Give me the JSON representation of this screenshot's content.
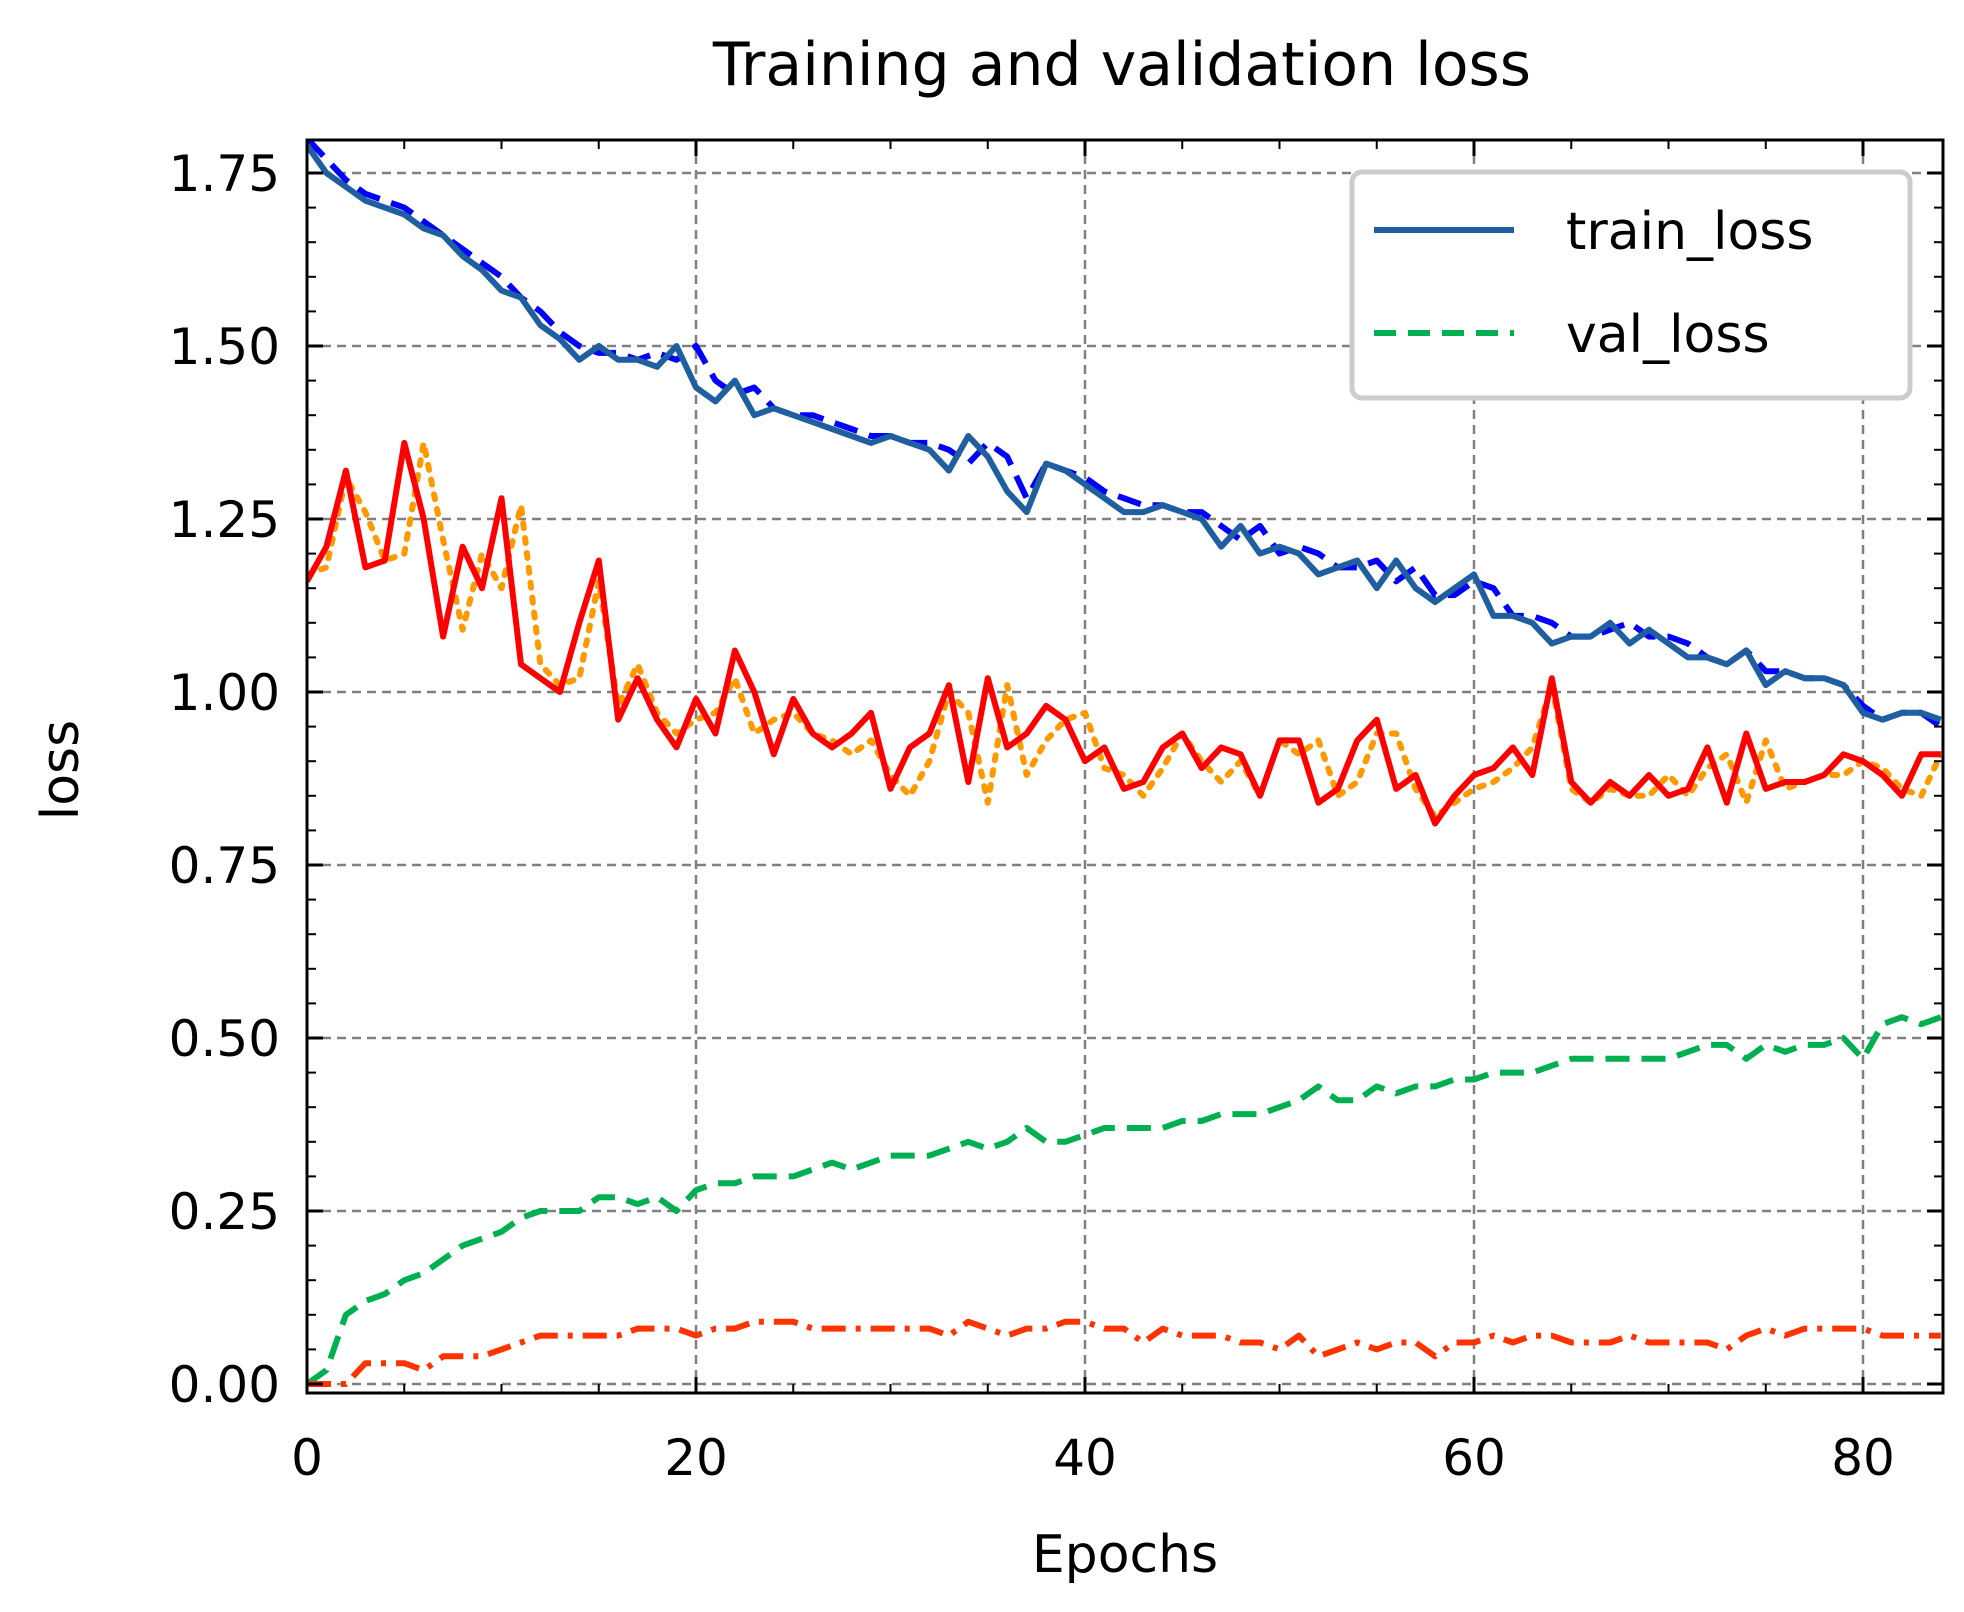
{
  "chart_data": {
    "type": "line",
    "title": "Training and validation loss",
    "xlabel": "Epochs",
    "ylabel": "loss",
    "xlim": [
      0,
      84
    ],
    "ylim": [
      0,
      1.8
    ],
    "xticks": [
      0,
      20,
      40,
      60,
      80
    ],
    "xtick_labels": [
      "0",
      "20",
      "40",
      "60",
      "80"
    ],
    "yticks": [
      0,
      0.25,
      0.5,
      0.75,
      1.0,
      1.25,
      1.5,
      1.75
    ],
    "ytick_labels": [
      "0.00",
      "0.25",
      "0.50",
      "0.75",
      "1.00",
      "1.25",
      "1.50",
      "1.75"
    ],
    "grid": true,
    "legend": {
      "position": "top-right",
      "entries": [
        "train_loss",
        "val_loss"
      ]
    },
    "x": [
      0,
      1,
      2,
      3,
      4,
      5,
      6,
      7,
      8,
      9,
      10,
      11,
      12,
      13,
      14,
      15,
      16,
      17,
      18,
      19,
      20,
      21,
      22,
      23,
      24,
      25,
      26,
      27,
      28,
      29,
      30,
      31,
      32,
      33,
      34,
      35,
      36,
      37,
      38,
      39,
      40,
      41,
      42,
      43,
      44,
      45,
      46,
      47,
      48,
      49,
      50,
      51,
      52,
      53,
      54,
      55,
      56,
      57,
      58,
      59,
      60,
      61,
      62,
      63,
      64,
      65,
      66,
      67,
      68,
      69,
      70,
      71,
      72,
      73,
      74,
      75,
      76,
      77,
      78,
      79,
      80,
      81,
      82,
      83,
      84
    ],
    "series": [
      {
        "name": "train_loss",
        "color": "#1f5fa0",
        "style": "solid",
        "values": [
          1.79,
          1.75,
          1.73,
          1.71,
          1.7,
          1.69,
          1.67,
          1.66,
          1.63,
          1.61,
          1.58,
          1.57,
          1.53,
          1.51,
          1.48,
          1.5,
          1.48,
          1.48,
          1.47,
          1.5,
          1.44,
          1.42,
          1.45,
          1.4,
          1.41,
          1.4,
          1.39,
          1.38,
          1.37,
          1.36,
          1.37,
          1.36,
          1.35,
          1.32,
          1.37,
          1.34,
          1.29,
          1.26,
          1.33,
          1.32,
          1.3,
          1.28,
          1.26,
          1.26,
          1.27,
          1.26,
          1.25,
          1.21,
          1.24,
          1.2,
          1.21,
          1.2,
          1.17,
          1.18,
          1.19,
          1.15,
          1.19,
          1.15,
          1.13,
          1.15,
          1.17,
          1.11,
          1.11,
          1.1,
          1.07,
          1.08,
          1.08,
          1.1,
          1.07,
          1.09,
          1.07,
          1.05,
          1.05,
          1.04,
          1.06,
          1.01,
          1.03,
          1.02,
          1.02,
          1.01,
          0.97,
          0.96,
          0.97,
          0.97,
          0.96
        ]
      },
      {
        "name": "val_loss",
        "color": "#00b050",
        "style": "dashed",
        "values": [
          0.0,
          0.02,
          0.1,
          0.12,
          0.13,
          0.15,
          0.16,
          0.18,
          0.2,
          0.21,
          0.22,
          0.24,
          0.25,
          0.25,
          0.25,
          0.27,
          0.27,
          0.26,
          0.27,
          0.25,
          0.28,
          0.29,
          0.29,
          0.3,
          0.3,
          0.3,
          0.31,
          0.32,
          0.31,
          0.32,
          0.33,
          0.33,
          0.33,
          0.34,
          0.35,
          0.34,
          0.35,
          0.37,
          0.35,
          0.35,
          0.36,
          0.37,
          0.37,
          0.37,
          0.37,
          0.38,
          0.38,
          0.39,
          0.39,
          0.39,
          0.4,
          0.41,
          0.43,
          0.41,
          0.41,
          0.43,
          0.42,
          0.43,
          0.43,
          0.44,
          0.44,
          0.45,
          0.45,
          0.45,
          0.46,
          0.47,
          0.47,
          0.47,
          0.47,
          0.47,
          0.47,
          0.48,
          0.49,
          0.49,
          0.47,
          0.49,
          0.48,
          0.49,
          0.49,
          0.5,
          0.47,
          0.52,
          0.53,
          0.52,
          0.53
        ]
      },
      {
        "color": "#0000ff",
        "style": "dashed",
        "values": [
          1.8,
          1.77,
          1.74,
          1.72,
          1.71,
          1.7,
          1.68,
          1.66,
          1.64,
          1.62,
          1.6,
          1.57,
          1.55,
          1.52,
          1.5,
          1.49,
          1.49,
          1.48,
          1.49,
          1.48,
          1.5,
          1.45,
          1.43,
          1.44,
          1.41,
          1.4,
          1.4,
          1.39,
          1.38,
          1.37,
          1.37,
          1.36,
          1.36,
          1.35,
          1.33,
          1.36,
          1.34,
          1.28,
          1.33,
          1.32,
          1.31,
          1.29,
          1.28,
          1.27,
          1.27,
          1.26,
          1.26,
          1.24,
          1.22,
          1.24,
          1.2,
          1.21,
          1.2,
          1.18,
          1.18,
          1.19,
          1.16,
          1.18,
          1.14,
          1.14,
          1.16,
          1.15,
          1.11,
          1.11,
          1.1,
          1.08,
          1.08,
          1.09,
          1.1,
          1.08,
          1.08,
          1.07,
          1.05,
          1.04,
          1.06,
          1.03,
          1.03,
          1.02,
          1.02,
          1.01,
          0.98,
          0.96,
          0.97,
          0.97,
          0.95
        ]
      },
      {
        "color": "#ff0000",
        "style": "solid",
        "values": [
          1.16,
          1.21,
          1.32,
          1.18,
          1.19,
          1.36,
          1.25,
          1.08,
          1.21,
          1.15,
          1.28,
          1.04,
          1.02,
          1.0,
          1.1,
          1.19,
          0.96,
          1.02,
          0.96,
          0.92,
          0.99,
          0.94,
          1.06,
          1.0,
          0.91,
          0.99,
          0.94,
          0.92,
          0.94,
          0.97,
          0.86,
          0.92,
          0.94,
          1.01,
          0.87,
          1.02,
          0.92,
          0.94,
          0.98,
          0.96,
          0.9,
          0.92,
          0.86,
          0.87,
          0.92,
          0.94,
          0.89,
          0.92,
          0.91,
          0.85,
          0.93,
          0.93,
          0.84,
          0.86,
          0.93,
          0.96,
          0.86,
          0.88,
          0.81,
          0.85,
          0.88,
          0.89,
          0.92,
          0.88,
          1.02,
          0.87,
          0.84,
          0.87,
          0.85,
          0.88,
          0.85,
          0.86,
          0.92,
          0.84,
          0.94,
          0.86,
          0.87,
          0.87,
          0.88,
          0.91,
          0.9,
          0.88,
          0.85,
          0.91,
          0.91
        ]
      },
      {
        "color": "#ff9900",
        "style": "dotted",
        "values": [
          1.17,
          1.18,
          1.31,
          1.26,
          1.19,
          1.2,
          1.36,
          1.22,
          1.09,
          1.2,
          1.15,
          1.27,
          1.04,
          1.01,
          1.02,
          1.16,
          0.98,
          1.04,
          0.97,
          0.94,
          0.96,
          0.97,
          1.02,
          0.94,
          0.96,
          0.97,
          0.94,
          0.93,
          0.91,
          0.93,
          0.88,
          0.85,
          0.9,
          1.0,
          0.97,
          0.84,
          1.01,
          0.88,
          0.93,
          0.96,
          0.97,
          0.89,
          0.88,
          0.85,
          0.89,
          0.94,
          0.9,
          0.87,
          0.9,
          0.85,
          0.93,
          0.91,
          0.93,
          0.85,
          0.87,
          0.94,
          0.94,
          0.86,
          0.82,
          0.84,
          0.86,
          0.87,
          0.89,
          0.92,
          1.01,
          0.86,
          0.84,
          0.86,
          0.85,
          0.85,
          0.88,
          0.85,
          0.89,
          0.91,
          0.84,
          0.93,
          0.86,
          0.87,
          0.88,
          0.88,
          0.9,
          0.89,
          0.86,
          0.85,
          0.91
        ]
      },
      {
        "color": "#ff3300",
        "style": "dashdot",
        "values": [
          0.0,
          0.0,
          0.0,
          0.03,
          0.03,
          0.03,
          0.02,
          0.04,
          0.04,
          0.04,
          0.05,
          0.06,
          0.07,
          0.07,
          0.07,
          0.07,
          0.07,
          0.08,
          0.08,
          0.08,
          0.07,
          0.08,
          0.08,
          0.09,
          0.09,
          0.09,
          0.08,
          0.08,
          0.08,
          0.08,
          0.08,
          0.08,
          0.08,
          0.07,
          0.09,
          0.08,
          0.07,
          0.08,
          0.08,
          0.09,
          0.09,
          0.08,
          0.08,
          0.06,
          0.08,
          0.07,
          0.07,
          0.07,
          0.06,
          0.06,
          0.05,
          0.07,
          0.04,
          0.05,
          0.06,
          0.05,
          0.06,
          0.06,
          0.04,
          0.06,
          0.06,
          0.07,
          0.06,
          0.07,
          0.07,
          0.06,
          0.06,
          0.06,
          0.07,
          0.06,
          0.06,
          0.06,
          0.06,
          0.05,
          0.07,
          0.08,
          0.07,
          0.08,
          0.08,
          0.08,
          0.08,
          0.07,
          0.07,
          0.07,
          0.07
        ]
      }
    ]
  }
}
